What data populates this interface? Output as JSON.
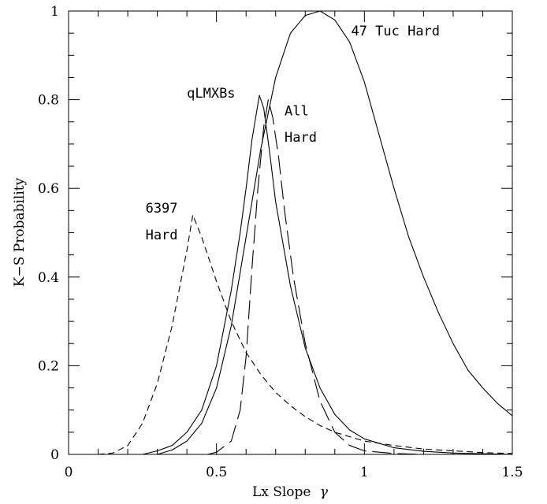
{
  "chart_data": {
    "type": "line",
    "title": "",
    "xlabel": "Lx Slope",
    "xlabel_symbol": "γ",
    "ylabel": "K−S Probability",
    "xlim": [
      0,
      1.5
    ],
    "ylim": [
      0,
      1
    ],
    "x_ticks": [
      {
        "value": 0,
        "label": "0"
      },
      {
        "value": 0.5,
        "label": "0.5"
      },
      {
        "value": 1,
        "label": "1"
      },
      {
        "value": 1.5,
        "label": "1.5"
      }
    ],
    "y_ticks": [
      {
        "value": 0,
        "label": "0"
      },
      {
        "value": 0.2,
        "label": "0.2"
      },
      {
        "value": 0.4,
        "label": "0.4"
      },
      {
        "value": 0.6,
        "label": "0.6"
      },
      {
        "value": 0.8,
        "label": "0.8"
      },
      {
        "value": 1,
        "label": "1"
      }
    ],
    "x_minor_step": 0.1,
    "y_minor_step": 0.05,
    "grid": false,
    "series": [
      {
        "style": "solid",
        "points": [
          [
            0.3,
            0.0
          ],
          [
            0.35,
            0.01
          ],
          [
            0.4,
            0.03
          ],
          [
            0.45,
            0.07
          ],
          [
            0.5,
            0.15
          ],
          [
            0.55,
            0.29
          ],
          [
            0.6,
            0.49
          ],
          [
            0.65,
            0.69
          ],
          [
            0.7,
            0.85
          ],
          [
            0.75,
            0.95
          ],
          [
            0.8,
            0.99
          ],
          [
            0.85,
            1.0
          ],
          [
            0.9,
            0.98
          ],
          [
            0.95,
            0.93
          ],
          [
            1.0,
            0.84
          ],
          [
            1.05,
            0.72
          ],
          [
            1.1,
            0.6
          ],
          [
            1.15,
            0.49
          ],
          [
            1.2,
            0.4
          ],
          [
            1.25,
            0.32
          ],
          [
            1.3,
            0.25
          ],
          [
            1.35,
            0.19
          ],
          [
            1.4,
            0.15
          ],
          [
            1.45,
            0.115
          ],
          [
            1.5,
            0.087
          ]
        ]
      },
      {
        "style": "solid",
        "points": [
          [
            0.25,
            0.0
          ],
          [
            0.3,
            0.008
          ],
          [
            0.35,
            0.02
          ],
          [
            0.4,
            0.05
          ],
          [
            0.45,
            0.1
          ],
          [
            0.5,
            0.2
          ],
          [
            0.55,
            0.37
          ],
          [
            0.58,
            0.5
          ],
          [
            0.6,
            0.6
          ],
          [
            0.62,
            0.71
          ],
          [
            0.64,
            0.79
          ],
          [
            0.645,
            0.81
          ],
          [
            0.66,
            0.78
          ],
          [
            0.68,
            0.68
          ],
          [
            0.7,
            0.57
          ],
          [
            0.75,
            0.38
          ],
          [
            0.8,
            0.24
          ],
          [
            0.85,
            0.15
          ],
          [
            0.9,
            0.09
          ],
          [
            0.95,
            0.055
          ],
          [
            1.0,
            0.035
          ],
          [
            1.1,
            0.015
          ],
          [
            1.2,
            0.007
          ],
          [
            1.3,
            0.003
          ],
          [
            1.5,
            0.0
          ]
        ]
      },
      {
        "style": "long-dash",
        "points": [
          [
            0.47,
            0.0
          ],
          [
            0.5,
            0.005
          ],
          [
            0.55,
            0.03
          ],
          [
            0.58,
            0.1
          ],
          [
            0.6,
            0.22
          ],
          [
            0.62,
            0.42
          ],
          [
            0.64,
            0.6
          ],
          [
            0.66,
            0.74
          ],
          [
            0.675,
            0.8
          ],
          [
            0.69,
            0.76
          ],
          [
            0.71,
            0.67
          ],
          [
            0.73,
            0.55
          ],
          [
            0.76,
            0.4
          ],
          [
            0.8,
            0.25
          ],
          [
            0.85,
            0.12
          ],
          [
            0.9,
            0.05
          ],
          [
            0.95,
            0.02
          ],
          [
            1.0,
            0.008
          ],
          [
            1.1,
            0.002
          ],
          [
            1.2,
            0.0
          ]
        ]
      },
      {
        "style": "short-dash",
        "points": [
          [
            0.1,
            0.0
          ],
          [
            0.15,
            0.003
          ],
          [
            0.2,
            0.02
          ],
          [
            0.25,
            0.07
          ],
          [
            0.3,
            0.16
          ],
          [
            0.35,
            0.29
          ],
          [
            0.4,
            0.46
          ],
          [
            0.42,
            0.54
          ],
          [
            0.45,
            0.49
          ],
          [
            0.5,
            0.39
          ],
          [
            0.55,
            0.3
          ],
          [
            0.6,
            0.23
          ],
          [
            0.65,
            0.18
          ],
          [
            0.7,
            0.14
          ],
          [
            0.75,
            0.11
          ],
          [
            0.8,
            0.085
          ],
          [
            0.85,
            0.065
          ],
          [
            0.9,
            0.05
          ],
          [
            0.95,
            0.04
          ],
          [
            1.0,
            0.03
          ],
          [
            1.1,
            0.02
          ],
          [
            1.2,
            0.012
          ],
          [
            1.3,
            0.008
          ],
          [
            1.4,
            0.004
          ],
          [
            1.5,
            0.002
          ]
        ]
      }
    ],
    "annotations": [
      {
        "text": "47 Tuc Hard",
        "x": 0.955,
        "y": 0.945
      },
      {
        "text": "qLMXBs",
        "x": 0.4,
        "y": 0.805
      },
      {
        "text": "All",
        "x": 0.73,
        "y": 0.765
      },
      {
        "text": "Hard",
        "x": 0.73,
        "y": 0.705
      },
      {
        "text": "6397",
        "x": 0.26,
        "y": 0.545
      },
      {
        "text": "Hard",
        "x": 0.26,
        "y": 0.485
      }
    ]
  }
}
